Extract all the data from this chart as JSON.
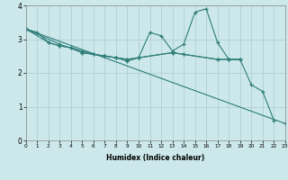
{
  "title": "",
  "xlabel": "Humidex (Indice chaleur)",
  "xlim": [
    0,
    23
  ],
  "ylim": [
    0,
    4
  ],
  "background_color": "#cce8ea",
  "line_color": "#2e7d78",
  "grid_color": "#aacccc",
  "lines": [
    {
      "x": [
        0,
        1,
        2,
        3,
        4,
        5,
        6,
        7,
        8,
        9,
        10,
        11,
        12,
        13,
        14,
        15,
        16,
        17,
        18,
        19
      ],
      "y": [
        3.3,
        3.2,
        2.9,
        2.8,
        2.75,
        2.6,
        2.55,
        2.5,
        2.45,
        2.35,
        2.45,
        3.2,
        3.1,
        2.65,
        2.85,
        3.8,
        3.9,
        2.9,
        2.4,
        2.4
      ]
    },
    {
      "x": [
        0,
        2,
        3,
        4,
        5,
        6,
        7,
        8,
        9,
        10,
        13,
        14,
        17,
        18,
        19
      ],
      "y": [
        3.3,
        2.9,
        2.8,
        2.75,
        2.65,
        2.55,
        2.5,
        2.45,
        2.4,
        2.45,
        2.6,
        2.55,
        2.4,
        2.4,
        2.4
      ]
    },
    {
      "x": [
        0,
        3,
        5,
        7,
        8,
        9,
        10,
        13,
        14,
        17,
        18,
        19,
        20,
        21,
        22
      ],
      "y": [
        3.3,
        2.85,
        2.6,
        2.5,
        2.45,
        2.4,
        2.45,
        2.6,
        2.55,
        2.4,
        2.4,
        2.4,
        1.65,
        1.45,
        0.6
      ]
    },
    {
      "x": [
        0,
        23
      ],
      "y": [
        3.3,
        0.5
      ]
    }
  ],
  "xticks": [
    0,
    1,
    2,
    3,
    4,
    5,
    6,
    7,
    8,
    9,
    10,
    11,
    12,
    13,
    14,
    15,
    16,
    17,
    18,
    19,
    20,
    21,
    22,
    23
  ],
  "yticks": [
    0,
    1,
    2,
    3,
    4
  ]
}
